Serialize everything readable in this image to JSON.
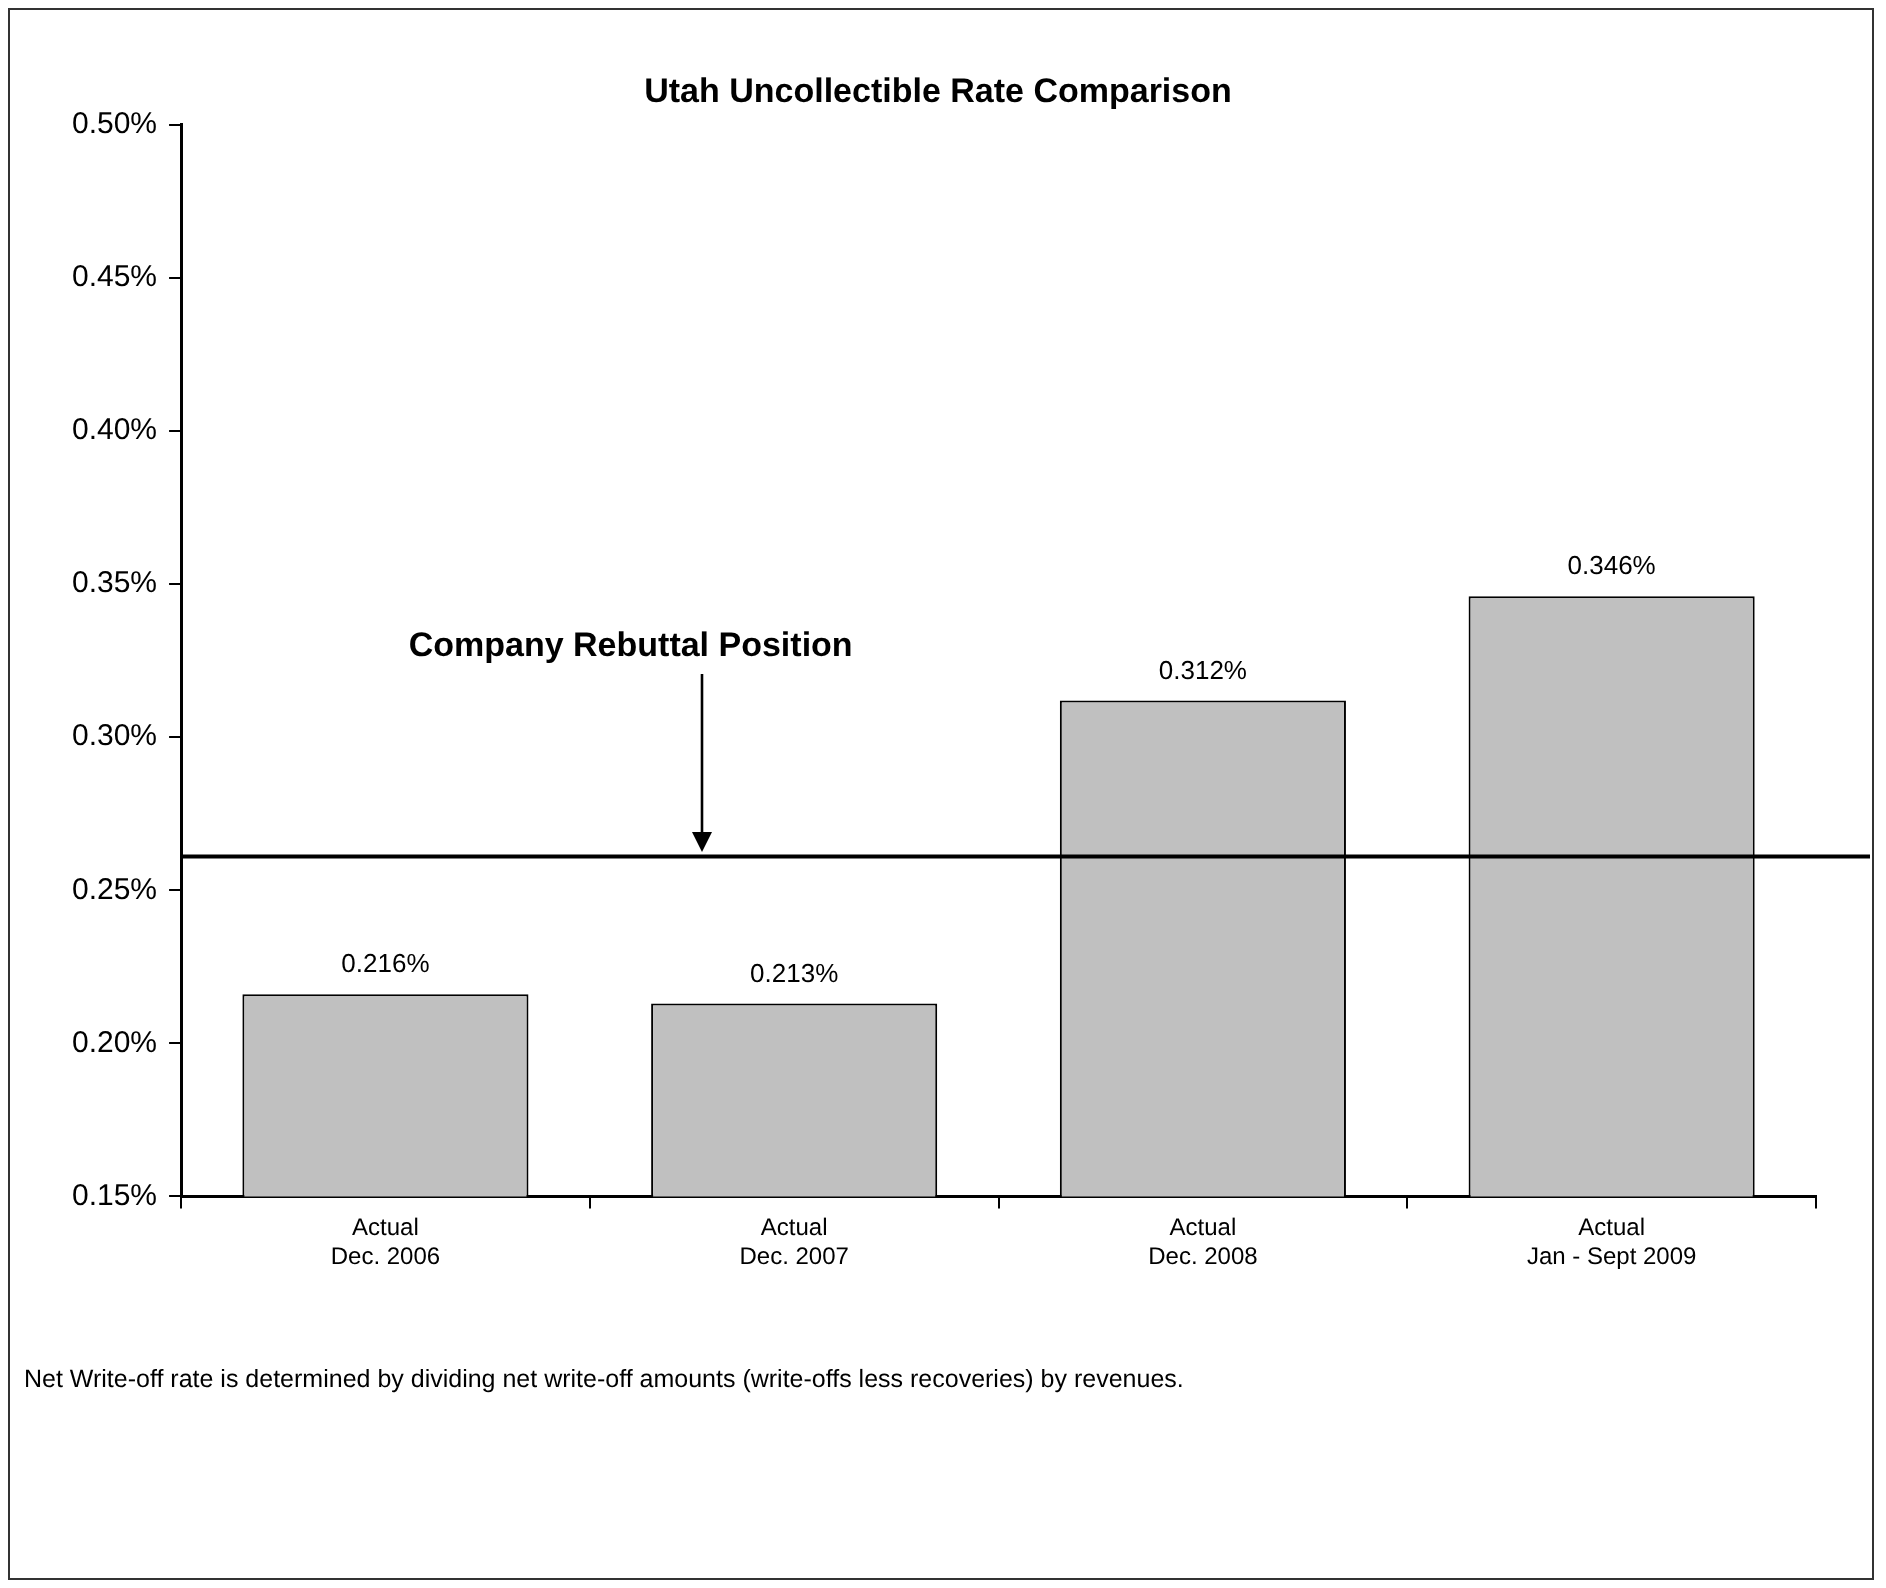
{
  "chart_data": {
    "type": "bar",
    "title": "Utah Uncollectible Rate Comparison",
    "categories": [
      "Actual\nDec. 2006",
      "Actual\nDec. 2007",
      "Actual\nDec. 2008",
      "Actual\nJan - Sept 2009"
    ],
    "values": [
      0.216,
      0.213,
      0.312,
      0.346
    ],
    "color": "#c0c0c0",
    "value_labels": [
      "0.216%",
      "0.213%",
      "0.312%",
      "0.346%"
    ],
    "ylim": [
      0.15,
      0.5
    ],
    "yticks": [
      {
        "value": 0.15,
        "label": "0.15%"
      },
      {
        "value": 0.2,
        "label": "0.20%"
      },
      {
        "value": 0.25,
        "label": "0.25%"
      },
      {
        "value": 0.3,
        "label": "0.30%"
      },
      {
        "value": 0.35,
        "label": "0.35%"
      },
      {
        "value": 0.4,
        "label": "0.40%"
      },
      {
        "value": 0.45,
        "label": "0.45%"
      },
      {
        "value": 0.5,
        "label": "0.50%"
      }
    ],
    "ref_lines": [
      {
        "axis": "y",
        "value": 0.261,
        "label": "Company Rebuttal Position",
        "color": "#000000"
      }
    ],
    "annotations": [
      "Net Write-off rate is determined by dividing net write-off amounts (write-offs less recoveries) by revenues."
    ],
    "grid": false,
    "legend": false
  }
}
